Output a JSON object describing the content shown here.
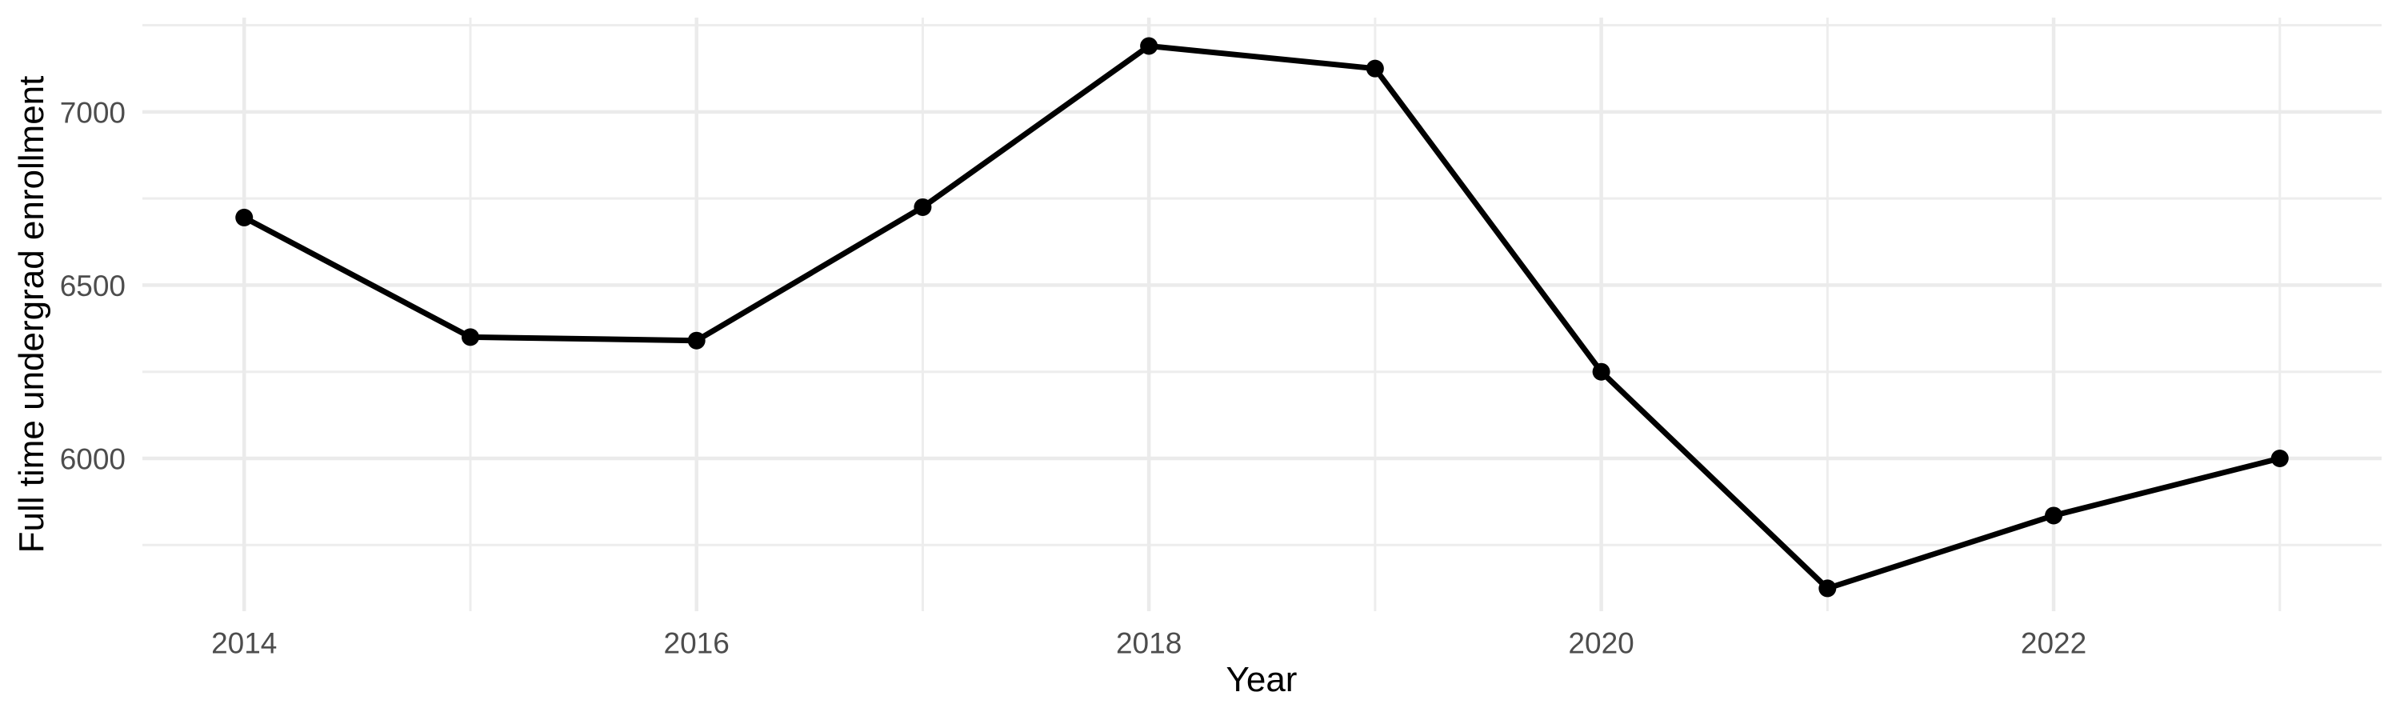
{
  "chart_data": {
    "type": "line",
    "title": "",
    "xlabel": "Year",
    "ylabel": "Full time undergrad enrollment",
    "x": [
      2014,
      2015,
      2016,
      2017,
      2018,
      2019,
      2020,
      2021,
      2022,
      2023
    ],
    "values": [
      6695,
      6350,
      6340,
      6725,
      7190,
      7125,
      6250,
      5625,
      5835,
      6000
    ],
    "series_name": "Full time undergrad enrollment",
    "xlim": [
      2013.55,
      2023.45
    ],
    "ylim": [
      5559,
      7272
    ],
    "x_ticks_major": [
      2014,
      2016,
      2018,
      2020,
      2022
    ],
    "x_tick_labels": [
      "2014",
      "2016",
      "2018",
      "2020",
      "2022"
    ],
    "x_ticks_minor": [
      2015,
      2017,
      2019,
      2021,
      2023
    ],
    "y_ticks_major": [
      6000,
      6500,
      7000
    ],
    "y_tick_labels": [
      "6000",
      "6500",
      "7000"
    ],
    "y_ticks_minor": [
      5750,
      6250,
      6750,
      7250
    ],
    "grid": true,
    "legend": "none",
    "marker": "filled-circle",
    "colors": {
      "line": "#000000",
      "point": "#000000",
      "grid_major": "#EBEBEB",
      "grid_minor": "#EDEDED",
      "tick_label": "#4D4D4D",
      "axis_title": "#000000",
      "background": "#FFFFFF"
    }
  }
}
